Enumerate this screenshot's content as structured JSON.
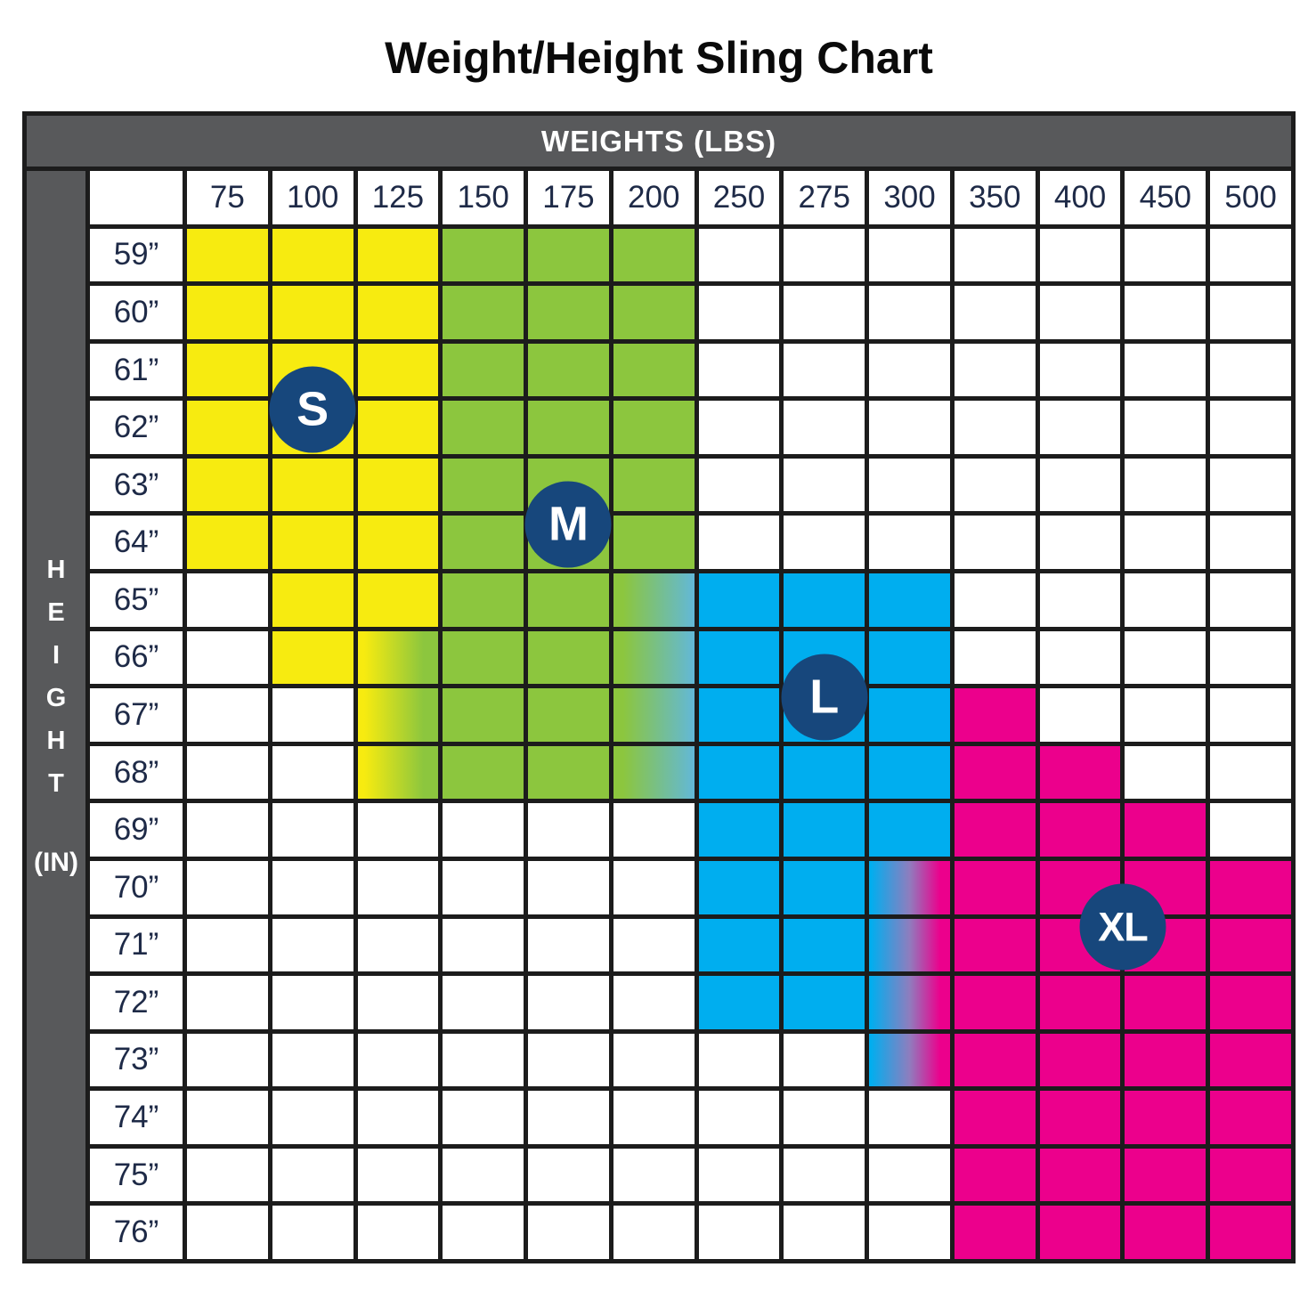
{
  "title": "Weight/Height Sling Chart",
  "table": {
    "header": "WEIGHTS (LBS)",
    "side_label_letters": [
      "H",
      "E",
      "I",
      "G",
      "H",
      "T"
    ],
    "side_label_unit": "(IN)"
  },
  "chart_data": {
    "type": "heatmap",
    "title": "Weight/Height Sling Chart",
    "xlabel": "WEIGHTS (LBS)",
    "ylabel": "HEIGHT (IN)",
    "x": [
      "75",
      "100",
      "125",
      "150",
      "175",
      "200",
      "250",
      "275",
      "300",
      "350",
      "400",
      "450",
      "500"
    ],
    "y": [
      "59”",
      "60”",
      "61”",
      "62”",
      "63”",
      "64”",
      "65”",
      "66”",
      "67”",
      "68”",
      "69”",
      "70”",
      "71”",
      "72”",
      "73”",
      "74”",
      "75”",
      "76”"
    ],
    "legend": {
      "S": "yellow region",
      "M": "green region",
      "L": "blue region",
      "XL": "pink region",
      "S/M": "yellow-to-green transition",
      "M/L": "green-to-blue transition",
      "L/XL": "blue-to-pink transition",
      "": "no sling size"
    },
    "values": [
      [
        "S",
        "S",
        "S",
        "M",
        "M",
        "M",
        "",
        "",
        "",
        "",
        "",
        "",
        ""
      ],
      [
        "S",
        "S",
        "S",
        "M",
        "M",
        "M",
        "",
        "",
        "",
        "",
        "",
        "",
        ""
      ],
      [
        "S",
        "S",
        "S",
        "M",
        "M",
        "M",
        "",
        "",
        "",
        "",
        "",
        "",
        ""
      ],
      [
        "S",
        "S",
        "S",
        "M",
        "M",
        "M",
        "",
        "",
        "",
        "",
        "",
        "",
        ""
      ],
      [
        "S",
        "S",
        "S",
        "M",
        "M",
        "M",
        "",
        "",
        "",
        "",
        "",
        "",
        ""
      ],
      [
        "S",
        "S",
        "S",
        "M",
        "M",
        "M",
        "",
        "",
        "",
        "",
        "",
        "",
        ""
      ],
      [
        "",
        "S",
        "S",
        "M",
        "M",
        "M/L",
        "L",
        "L",
        "L",
        "",
        "",
        "",
        ""
      ],
      [
        "",
        "S",
        "S/M",
        "M",
        "M",
        "M/L",
        "L",
        "L",
        "L",
        "",
        "",
        "",
        ""
      ],
      [
        "",
        "",
        "S/M",
        "M",
        "M",
        "M/L",
        "L",
        "L",
        "L",
        "XL",
        "",
        "",
        ""
      ],
      [
        "",
        "",
        "S/M",
        "M",
        "M",
        "M/L",
        "L",
        "L",
        "L",
        "XL",
        "XL",
        "",
        ""
      ],
      [
        "",
        "",
        "",
        "",
        "",
        "",
        "L",
        "L",
        "L",
        "XL",
        "XL",
        "XL",
        ""
      ],
      [
        "",
        "",
        "",
        "",
        "",
        "",
        "L",
        "L",
        "L/XL",
        "XL",
        "XL",
        "XL",
        "XL"
      ],
      [
        "",
        "",
        "",
        "",
        "",
        "",
        "L",
        "L",
        "L/XL",
        "XL",
        "XL",
        "XL",
        "XL"
      ],
      [
        "",
        "",
        "",
        "",
        "",
        "",
        "L",
        "L",
        "L/XL",
        "XL",
        "XL",
        "XL",
        "XL"
      ],
      [
        "",
        "",
        "",
        "",
        "",
        "",
        "",
        "",
        "L/XL",
        "XL",
        "XL",
        "XL",
        "XL"
      ],
      [
        "",
        "",
        "",
        "",
        "",
        "",
        "",
        "",
        "",
        "XL",
        "XL",
        "XL",
        "XL"
      ],
      [
        "",
        "",
        "",
        "",
        "",
        "",
        "",
        "",
        "",
        "XL",
        "XL",
        "XL",
        "XL"
      ],
      [
        "",
        "",
        "",
        "",
        "",
        "",
        "",
        "",
        "",
        "XL",
        "XL",
        "XL",
        "XL"
      ]
    ],
    "annotations": [
      {
        "label": "S",
        "weight": "100",
        "between_heights": [
          61,
          62
        ]
      },
      {
        "label": "M",
        "weight": "175",
        "between_heights": [
          63,
          64
        ]
      },
      {
        "label": "L",
        "weight": "275",
        "between_heights": [
          66,
          67
        ]
      },
      {
        "label": "XL",
        "between_weights": [
          "400",
          "450"
        ],
        "between_heights": [
          70,
          71
        ]
      }
    ]
  },
  "colors": {
    "yellow": "#F7EB10",
    "green": "#8CC63E",
    "blue": "#00AEEF",
    "pink": "#EC008C",
    "badge_navy": "#17477C",
    "header_gray": "#58595B",
    "grid_line": "#1C1C1C",
    "label_text": "#1E2A47"
  }
}
